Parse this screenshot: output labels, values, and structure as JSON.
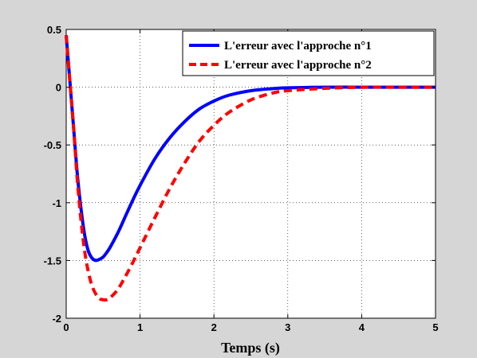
{
  "chart_data": {
    "type": "line",
    "xlabel": "Temps (s)",
    "ylabel": "",
    "title": "",
    "xlim": [
      0,
      5
    ],
    "ylim": [
      -2,
      0.5
    ],
    "xticks": [
      0,
      1,
      2,
      3,
      4,
      5
    ],
    "yticks": [
      0.5,
      0,
      -0.5,
      -1,
      -1.5,
      -2
    ],
    "x_tick_labels": [
      "0",
      "1",
      "2",
      "3",
      "4",
      "5"
    ],
    "y_tick_labels": [
      "0.5",
      "0",
      "-0.5",
      "-1",
      "-1.5",
      "-2"
    ],
    "grid": true,
    "legend_position": "top-right",
    "series": [
      {
        "name": "L'erreur avec l'approche n°1",
        "color": "#0000ff",
        "style": "solid",
        "x": [
          0,
          0.05,
          0.1,
          0.15,
          0.2,
          0.25,
          0.3,
          0.35,
          0.4,
          0.45,
          0.5,
          0.55,
          0.6,
          0.7,
          0.8,
          0.9,
          1.0,
          1.2,
          1.4,
          1.6,
          1.8,
          2.0,
          2.2,
          2.5,
          2.8,
          3.0,
          3.5,
          4.0,
          4.5,
          5.0
        ],
        "y": [
          0.45,
          0.05,
          -0.35,
          -0.75,
          -1.05,
          -1.28,
          -1.42,
          -1.48,
          -1.5,
          -1.49,
          -1.47,
          -1.43,
          -1.38,
          -1.26,
          -1.12,
          -0.98,
          -0.85,
          -0.62,
          -0.44,
          -0.3,
          -0.19,
          -0.12,
          -0.07,
          -0.03,
          -0.012,
          -0.005,
          0.0,
          0.0,
          0.0,
          0.0
        ]
      },
      {
        "name": "L'erreur avec l'approche n°2",
        "color": "#ff0000",
        "style": "dashed",
        "x": [
          0,
          0.05,
          0.1,
          0.15,
          0.2,
          0.25,
          0.3,
          0.35,
          0.4,
          0.45,
          0.5,
          0.55,
          0.6,
          0.7,
          0.8,
          0.9,
          1.0,
          1.2,
          1.4,
          1.6,
          1.8,
          2.0,
          2.2,
          2.5,
          2.8,
          3.0,
          3.5,
          4.0,
          4.5,
          5.0
        ],
        "y": [
          0.45,
          0.05,
          -0.35,
          -0.8,
          -1.15,
          -1.42,
          -1.6,
          -1.72,
          -1.79,
          -1.83,
          -1.84,
          -1.84,
          -1.82,
          -1.75,
          -1.64,
          -1.52,
          -1.39,
          -1.13,
          -0.88,
          -0.66,
          -0.47,
          -0.33,
          -0.22,
          -0.11,
          -0.05,
          -0.03,
          -0.01,
          0.0,
          0.0,
          0.0
        ]
      }
    ]
  }
}
